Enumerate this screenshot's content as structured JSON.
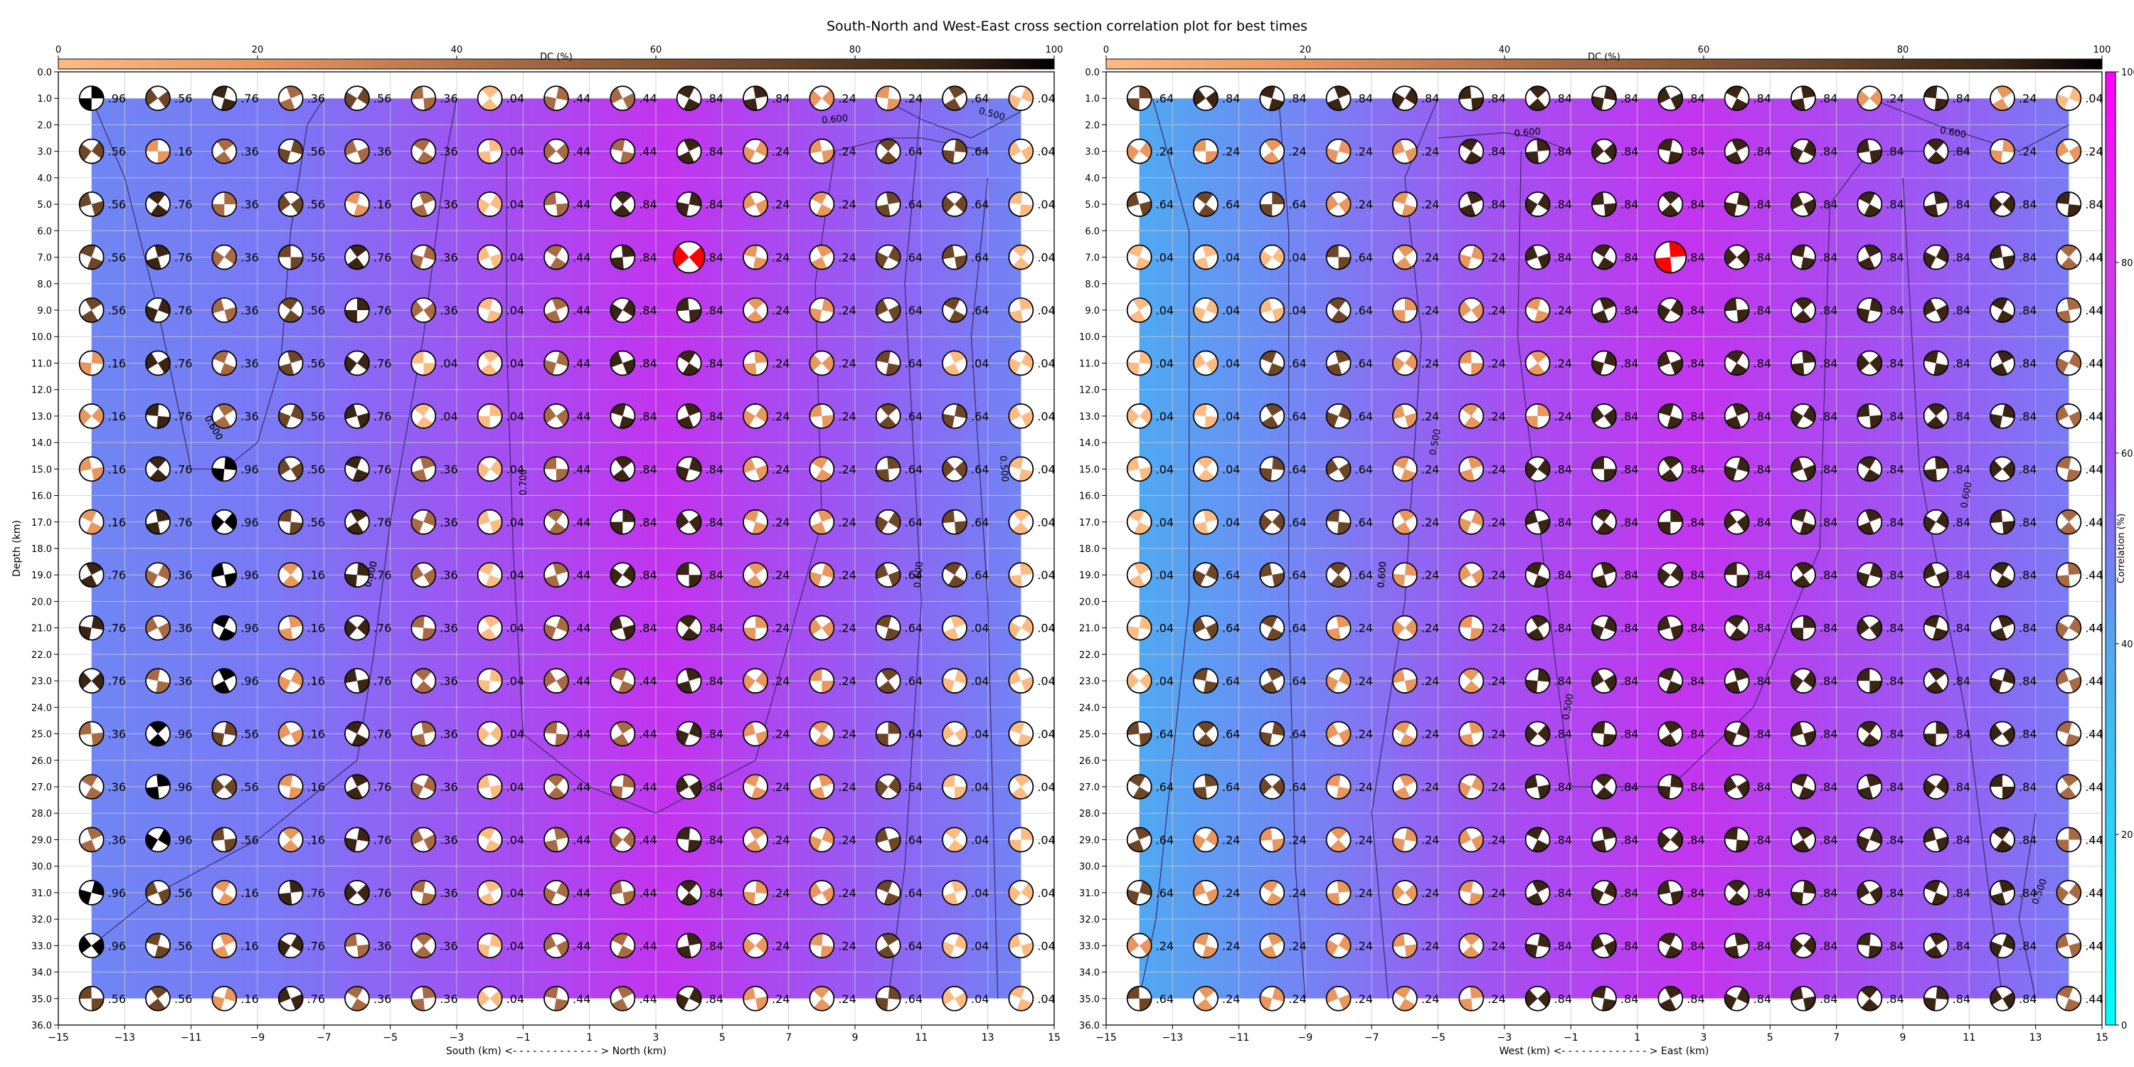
{
  "figure": {
    "title": "South-North and West-East cross section correlation plot for best times"
  },
  "colors": {
    "dc_colormap": [
      "#fdbb84",
      "#e9965f",
      "#a86a44",
      "#6d4628",
      "#3a2414",
      "#000000"
    ],
    "corr_colormap": [
      "#00ffff",
      "#54a7f0",
      "#7d73f4",
      "#a64ef0",
      "#d23ae8",
      "#ff00ff"
    ],
    "best_solution_beachball": "#ff0000",
    "contour_line": "#3a2a6b",
    "grid": "#cccccc"
  },
  "chart_data": [
    {
      "type": "heatmap",
      "title": "",
      "xlabel": "South (km) <- - - - - - - - - - - - - > North (km)",
      "ylabel": "Depth (km)",
      "xlim": [
        -15,
        15
      ],
      "ylim": [
        36.0,
        0.0
      ],
      "x_tick_labels": [
        "−15",
        "−13",
        "−11",
        "−9",
        "−7",
        "−5",
        "−3",
        "−1",
        "1",
        "3",
        "5",
        "7",
        "9",
        "11",
        "13",
        "15"
      ],
      "y_tick_labels": [
        "0.0",
        "1.0",
        "2.0",
        "3.0",
        "4.0",
        "5.0",
        "6.0",
        "7.0",
        "8.0",
        "9.0",
        "10.0",
        "11.0",
        "12.0",
        "13.0",
        "14.0",
        "15.0",
        "16.0",
        "17.0",
        "18.0",
        "19.0",
        "20.0",
        "21.0",
        "22.0",
        "23.0",
        "24.0",
        "25.0",
        "26.0",
        "27.0",
        "28.0",
        "29.0",
        "30.0",
        "31.0",
        "32.0",
        "33.0",
        "34.0",
        "35.0",
        "36.0"
      ],
      "grid": true,
      "x_values": [
        -14,
        -12,
        -10,
        -8,
        -6,
        -4,
        -2,
        0,
        2,
        4,
        6,
        8,
        10,
        12,
        14
      ],
      "depths": [
        1,
        3,
        5,
        7,
        9,
        11,
        13,
        15,
        17,
        19,
        21,
        23,
        25,
        27,
        29,
        31,
        33,
        35
      ],
      "best_point": {
        "x": 4,
        "depth": 7
      },
      "contour_labels": [
        "0.500",
        "0.600",
        "0.700",
        "0.600",
        "0.600",
        "0.500",
        "0.500",
        "0.600",
        "0.500"
      ],
      "cell_labels": [
        [
          "96",
          "56",
          "76",
          "36",
          "56",
          "36",
          "04",
          "44",
          "44",
          "84",
          "84",
          "24",
          "24",
          "64",
          "04"
        ],
        [
          "56",
          "16",
          "36",
          "56",
          "36",
          "36",
          "04",
          "44",
          "44",
          "84",
          "24",
          "24",
          "64",
          "64",
          "04"
        ],
        [
          "56",
          "76",
          "36",
          "56",
          "16",
          "36",
          "04",
          "44",
          "84",
          "84",
          "24",
          "24",
          "64",
          "64",
          "04"
        ],
        [
          "56",
          "76",
          "36",
          "56",
          "76",
          "36",
          "04",
          "44",
          "84",
          "84",
          "24",
          "24",
          "64",
          "64",
          "04"
        ],
        [
          "56",
          "76",
          "36",
          "56",
          "76",
          "36",
          "04",
          "44",
          "84",
          "84",
          "24",
          "24",
          "64",
          "64",
          "04"
        ],
        [
          "16",
          "76",
          "36",
          "56",
          "76",
          "04",
          "04",
          "44",
          "84",
          "84",
          "24",
          "24",
          "64",
          "04",
          "04"
        ],
        [
          "16",
          "76",
          "36",
          "56",
          "76",
          "04",
          "04",
          "44",
          "84",
          "84",
          "24",
          "24",
          "64",
          "64",
          "04"
        ],
        [
          "16",
          "76",
          "96",
          "56",
          "76",
          "36",
          "04",
          "44",
          "84",
          "84",
          "24",
          "24",
          "64",
          "64",
          "04"
        ],
        [
          "16",
          "76",
          "96",
          "56",
          "76",
          "36",
          "04",
          "44",
          "84",
          "84",
          "24",
          "24",
          "64",
          "64",
          "04"
        ],
        [
          "76",
          "36",
          "96",
          "16",
          "76",
          "36",
          "04",
          "44",
          "84",
          "84",
          "24",
          "24",
          "64",
          "64",
          "04"
        ],
        [
          "76",
          "36",
          "96",
          "16",
          "76",
          "36",
          "04",
          "44",
          "84",
          "84",
          "24",
          "24",
          "64",
          "04",
          "04"
        ],
        [
          "76",
          "36",
          "96",
          "16",
          "76",
          "36",
          "04",
          "44",
          "44",
          "84",
          "24",
          "24",
          "64",
          "04",
          "04"
        ],
        [
          "36",
          "96",
          "56",
          "16",
          "76",
          "36",
          "04",
          "44",
          "44",
          "84",
          "24",
          "24",
          "64",
          "04",
          "04"
        ],
        [
          "36",
          "96",
          "56",
          "16",
          "76",
          "36",
          "04",
          "44",
          "44",
          "84",
          "24",
          "24",
          "64",
          "04",
          "04"
        ],
        [
          "36",
          "96",
          "56",
          "16",
          "76",
          "36",
          "04",
          "44",
          "44",
          "84",
          "24",
          "24",
          "64",
          "04",
          "04"
        ],
        [
          "96",
          "56",
          "16",
          "76",
          "76",
          "36",
          "04",
          "44",
          "44",
          "84",
          "24",
          "24",
          "64",
          "04",
          "04"
        ],
        [
          "96",
          "56",
          "16",
          "76",
          "36",
          "36",
          "04",
          "44",
          "44",
          "84",
          "24",
          "24",
          "64",
          "04",
          "04"
        ],
        [
          "56",
          "56",
          "16",
          "76",
          "36",
          "36",
          "04",
          "44",
          "44",
          "84",
          "24",
          "24",
          "64",
          "04",
          "04"
        ]
      ],
      "dc_colorbar": {
        "label": "DC (%)",
        "ticks": [
          "0",
          "20",
          "40",
          "60",
          "80",
          "100"
        ],
        "range": [
          0,
          100
        ]
      }
    },
    {
      "type": "heatmap",
      "title": "",
      "xlabel": "West (km) <- - - - - - - - - - - - - > East (km)",
      "ylabel": "",
      "xlim": [
        -15,
        15
      ],
      "ylim": [
        36.0,
        0.0
      ],
      "x_tick_labels": [
        "−15",
        "−13",
        "−11",
        "−9",
        "−7",
        "−5",
        "−3",
        "−1",
        "1",
        "3",
        "5",
        "7",
        "9",
        "11",
        "13",
        "15"
      ],
      "y_tick_labels": [
        "0.0",
        "1.0",
        "2.0",
        "3.0",
        "4.0",
        "5.0",
        "6.0",
        "7.0",
        "8.0",
        "9.0",
        "10.0",
        "11.0",
        "12.0",
        "13.0",
        "14.0",
        "15.0",
        "16.0",
        "17.0",
        "18.0",
        "19.0",
        "20.0",
        "21.0",
        "22.0",
        "23.0",
        "24.0",
        "25.0",
        "26.0",
        "27.0",
        "28.0",
        "29.0",
        "30.0",
        "31.0",
        "32.0",
        "33.0",
        "34.0",
        "35.0",
        "36.0"
      ],
      "grid": true,
      "x_values": [
        -14,
        -12,
        -10,
        -8,
        -6,
        -4,
        -2,
        0,
        2,
        4,
        6,
        8,
        10,
        12,
        14
      ],
      "depths": [
        1,
        3,
        5,
        7,
        9,
        11,
        13,
        15,
        17,
        19,
        21,
        23,
        25,
        27,
        29,
        31,
        33,
        35
      ],
      "best_point": {
        "x": 2,
        "depth": 7
      },
      "contour_labels": [
        "0.600",
        "0.500",
        "0.600",
        "0.500",
        "0.600",
        "0.600",
        "0.500",
        "0.600"
      ],
      "cell_labels": [
        [
          "64",
          "84",
          "84",
          "84",
          "84",
          "84",
          "84",
          "84",
          "84",
          "84",
          "84",
          "24",
          "84",
          "24",
          "04"
        ],
        [
          "24",
          "24",
          "24",
          "24",
          "24",
          "84",
          "84",
          "84",
          "84",
          "84",
          "84",
          "84",
          "84",
          "24",
          "24"
        ],
        [
          "64",
          "64",
          "64",
          "24",
          "24",
          "84",
          "84",
          "84",
          "84",
          "84",
          "84",
          "84",
          "84",
          "84",
          "84"
        ],
        [
          "04",
          "04",
          "04",
          "64",
          "24",
          "24",
          "84",
          "84",
          "84",
          "84",
          "84",
          "84",
          "84",
          "84",
          "44"
        ],
        [
          "04",
          "04",
          "04",
          "64",
          "24",
          "24",
          "24",
          "84",
          "84",
          "84",
          "84",
          "84",
          "84",
          "84",
          "44"
        ],
        [
          "04",
          "04",
          "64",
          "64",
          "24",
          "24",
          "24",
          "84",
          "84",
          "84",
          "84",
          "84",
          "84",
          "84",
          "44"
        ],
        [
          "04",
          "04",
          "64",
          "64",
          "24",
          "24",
          "24",
          "84",
          "84",
          "84",
          "84",
          "84",
          "84",
          "84",
          "44"
        ],
        [
          "04",
          "04",
          "64",
          "64",
          "24",
          "24",
          "84",
          "84",
          "84",
          "84",
          "84",
          "84",
          "84",
          "84",
          "44"
        ],
        [
          "04",
          "04",
          "64",
          "64",
          "24",
          "24",
          "84",
          "84",
          "84",
          "84",
          "84",
          "84",
          "84",
          "84",
          "44"
        ],
        [
          "04",
          "64",
          "64",
          "64",
          "24",
          "24",
          "84",
          "84",
          "84",
          "84",
          "84",
          "84",
          "84",
          "84",
          "44"
        ],
        [
          "04",
          "64",
          "64",
          "24",
          "24",
          "24",
          "84",
          "84",
          "84",
          "84",
          "84",
          "84",
          "84",
          "84",
          "44"
        ],
        [
          "04",
          "64",
          "64",
          "24",
          "24",
          "24",
          "84",
          "84",
          "84",
          "84",
          "84",
          "84",
          "84",
          "84",
          "44"
        ],
        [
          "64",
          "64",
          "64",
          "24",
          "24",
          "24",
          "84",
          "84",
          "84",
          "84",
          "84",
          "84",
          "84",
          "84",
          "44"
        ],
        [
          "64",
          "64",
          "64",
          "24",
          "24",
          "24",
          "84",
          "84",
          "84",
          "84",
          "84",
          "84",
          "84",
          "84",
          "44"
        ],
        [
          "64",
          "24",
          "24",
          "24",
          "24",
          "24",
          "84",
          "84",
          "84",
          "84",
          "84",
          "84",
          "84",
          "84",
          "44"
        ],
        [
          "64",
          "24",
          "24",
          "24",
          "24",
          "24",
          "84",
          "84",
          "84",
          "84",
          "84",
          "84",
          "84",
          "84",
          "44"
        ],
        [
          "24",
          "24",
          "24",
          "24",
          "24",
          "24",
          "84",
          "84",
          "84",
          "84",
          "84",
          "84",
          "84",
          "84",
          "44"
        ],
        [
          "64",
          "24",
          "24",
          "24",
          "24",
          "24",
          "84",
          "84",
          "84",
          "84",
          "84",
          "84",
          "84",
          "84",
          "44"
        ]
      ],
      "dc_colorbar": {
        "label": "DC (%)",
        "ticks": [
          "0",
          "20",
          "40",
          "60",
          "80",
          "100"
        ],
        "range": [
          0,
          100
        ]
      },
      "corr_colorbar": {
        "label": "Correlation (%)",
        "ticks": [
          "0",
          "20",
          "40",
          "60",
          "80",
          "100"
        ],
        "range": [
          0,
          100
        ]
      }
    }
  ]
}
